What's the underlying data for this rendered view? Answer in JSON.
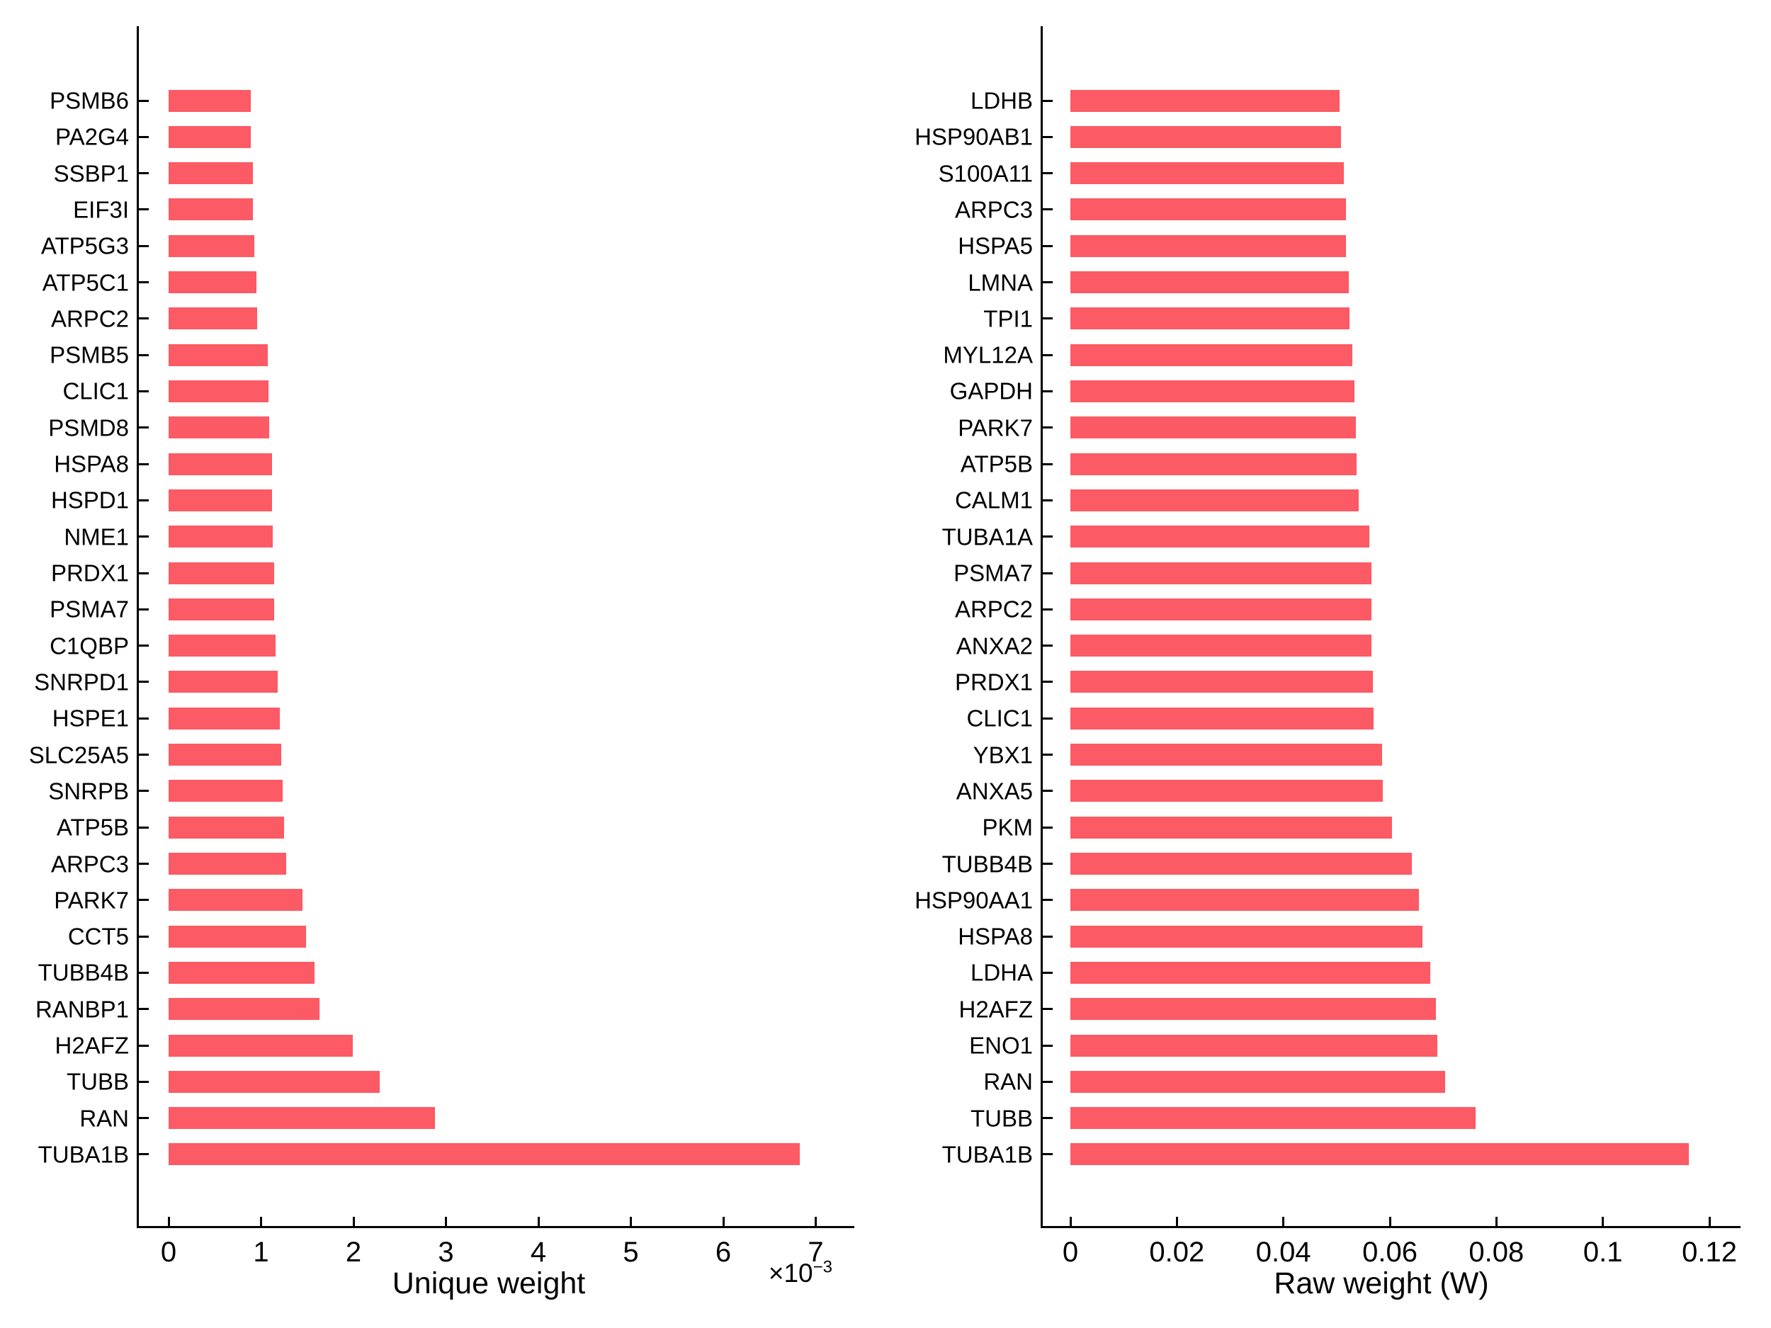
{
  "figure": {
    "background_color": "#ffffff",
    "axis_color": "#000000",
    "text_color": "#000000",
    "bar_color": "#FC5A64"
  },
  "chart_data": [
    {
      "type": "bar",
      "orientation": "horizontal",
      "title": "",
      "xlabel": "Unique weight",
      "ylabel": "",
      "scale_label": {
        "prefix": "×10",
        "exponent": "−3"
      },
      "value_unit": "1e-3",
      "bar_color": "#FC5A64",
      "grid": false,
      "tick_direction": "in",
      "category_order": "top_to_bottom",
      "xlim": [
        0,
        7.4
      ],
      "categories": [
        "PSMB6",
        "PA2G4",
        "SSBP1",
        "EIF3I",
        "ATP5G3",
        "ATP5C1",
        "ARPC2",
        "PSMB5",
        "CLIC1",
        "PSMD8",
        "HSPA8",
        "HSPD1",
        "NME1",
        "PRDX1",
        "PSMA7",
        "C1QBP",
        "SNRPD1",
        "HSPE1",
        "SLC25A5",
        "SNRPB",
        "ATP5B",
        "ARPC3",
        "PARK7",
        "CCT5",
        "TUBB4B",
        "RANBP1",
        "H2AFZ",
        "TUBB",
        "RAN",
        "TUBA1B"
      ],
      "values": [
        0.89,
        0.89,
        0.91,
        0.91,
        0.93,
        0.95,
        0.96,
        1.07,
        1.08,
        1.09,
        1.12,
        1.12,
        1.13,
        1.14,
        1.14,
        1.16,
        1.18,
        1.2,
        1.22,
        1.23,
        1.25,
        1.27,
        1.45,
        1.49,
        1.58,
        1.63,
        1.99,
        2.28,
        2.88,
        6.83
      ],
      "xticks": [
        {
          "value": 0,
          "label": "0"
        },
        {
          "value": 1,
          "label": "1"
        },
        {
          "value": 2,
          "label": "2"
        },
        {
          "value": 3,
          "label": "3"
        },
        {
          "value": 4,
          "label": "4"
        },
        {
          "value": 5,
          "label": "5"
        },
        {
          "value": 6,
          "label": "6"
        },
        {
          "value": 7,
          "label": "7"
        }
      ]
    },
    {
      "type": "bar",
      "orientation": "horizontal",
      "title": "",
      "xlabel": "Raw weight (W)",
      "ylabel": "",
      "value_unit": "1",
      "bar_color": "#FC5A64",
      "grid": false,
      "tick_direction": "in",
      "category_order": "top_to_bottom",
      "xlim": [
        0,
        0.126
      ],
      "categories": [
        "LDHB",
        "HSP90AB1",
        "S100A11",
        "ARPC3",
        "HSPA5",
        "LMNA",
        "TPI1",
        "MYL12A",
        "GAPDH",
        "PARK7",
        "ATP5B",
        "CALM1",
        "TUBA1A",
        "PSMA7",
        "ARPC2",
        "ANXA2",
        "PRDX1",
        "CLIC1",
        "YBX1",
        "ANXA5",
        "PKM",
        "TUBB4B",
        "HSP90AA1",
        "HSPA8",
        "LDHA",
        "H2AFZ",
        "ENO1",
        "RAN",
        "TUBB",
        "TUBA1B"
      ],
      "values": [
        0.0506,
        0.0508,
        0.0514,
        0.0518,
        0.0518,
        0.0523,
        0.0524,
        0.0529,
        0.0533,
        0.0536,
        0.0538,
        0.0542,
        0.0561,
        0.0565,
        0.0565,
        0.0565,
        0.0568,
        0.0569,
        0.0586,
        0.0587,
        0.0604,
        0.0641,
        0.0654,
        0.0661,
        0.0676,
        0.0686,
        0.0689,
        0.0704,
        0.0761,
        0.1161
      ],
      "xticks": [
        {
          "value": 0,
          "label": "0"
        },
        {
          "value": 0.02,
          "label": "0.02"
        },
        {
          "value": 0.04,
          "label": "0.04"
        },
        {
          "value": 0.06,
          "label": "0.06"
        },
        {
          "value": 0.08,
          "label": "0.08"
        },
        {
          "value": 0.1,
          "label": "0.1"
        },
        {
          "value": 0.12,
          "label": "0.12"
        }
      ]
    }
  ]
}
